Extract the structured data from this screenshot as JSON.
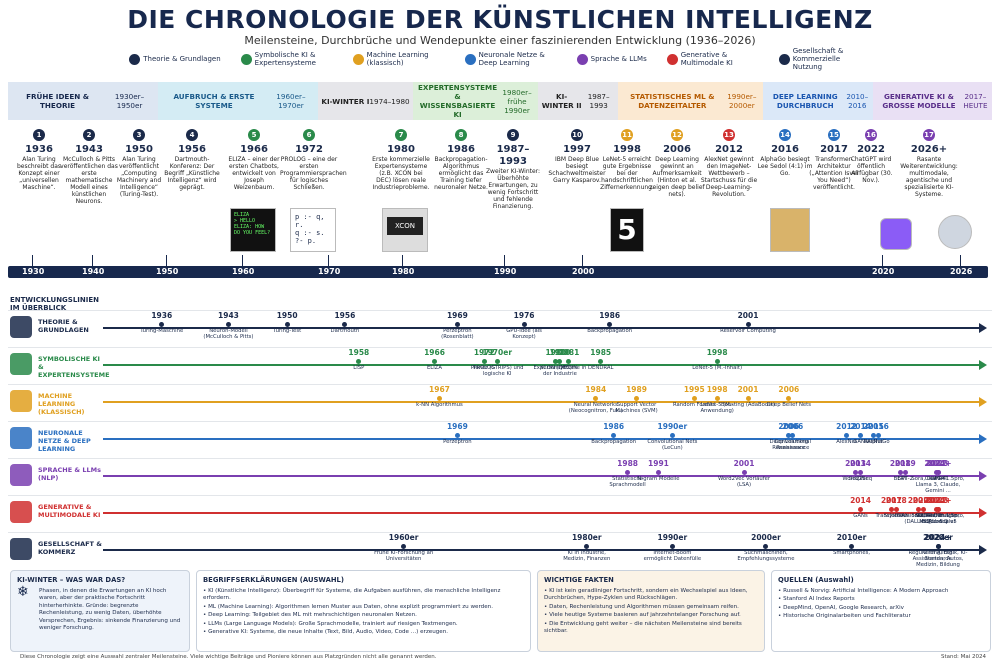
{
  "title": "DIE CHRONOLOGIE DER KÜNSTLICHEN INTELLIGENZ",
  "subtitle": "Meilensteine, Durchbrüche und Wendepunkte einer faszinierenden Entwicklung (1936–2026)",
  "legend": [
    {
      "label": "Theorie & Grundlagen",
      "color": "#1b2a4a"
    },
    {
      "label": "Symbolische KI & Expertensysteme",
      "color": "#2a8a4a"
    },
    {
      "label": "Machine Learning (klassisch)",
      "color": "#e0a020"
    },
    {
      "label": "Neuronale Netze & Deep Learning",
      "color": "#2a6fc0"
    },
    {
      "label": "Sprache & LLMs",
      "color": "#7a3fb0"
    },
    {
      "label": "Generative & Multimodale KI",
      "color": "#d03030"
    },
    {
      "label": "Gesellschaft & Kommerzielle Nutzung",
      "color": "#1b2a4a"
    }
  ],
  "eras": [
    {
      "title": "FRÜHE IDEEN & THEORIE",
      "sub": "1930er–1950er",
      "bg": "#dde6f2",
      "color": "#17284d"
    },
    {
      "title": "AUFBRUCH & ERSTE SYSTEME",
      "sub": "1960er–1970er",
      "bg": "#d4ecf4",
      "color": "#1a5a8a"
    },
    {
      "title": "KI-WINTER I",
      "sub": "1974–1980",
      "bg": "#e6e6ea",
      "color": "#222"
    },
    {
      "title": "EXPERTENSYSTEME & WISSENSBASIERTE KI",
      "sub": "1980er–frühe 1990er",
      "bg": "#dcefd9",
      "color": "#246b2a"
    },
    {
      "title": "KI-WINTER II",
      "sub": "1987–1993",
      "bg": "#e6e6ea",
      "color": "#222"
    },
    {
      "title": "STATISTISCHES ML & DATENZEITALTER",
      "sub": "1990er–2000er",
      "bg": "#fbe9d2",
      "color": "#b55a00"
    },
    {
      "title": "DEEP LEARNING DURCHBRUCH",
      "sub": "2010–2016",
      "bg": "#dbe8f8",
      "color": "#1b56b0"
    },
    {
      "title": "GENERATIVE KI & GROSSE MODELLE",
      "sub": "2017–HEUTE",
      "bg": "#e9e0f4",
      "color": "#5a2f8a"
    }
  ],
  "events": [
    {
      "n": "1",
      "year": "1936",
      "text": "Alan Turing beschreibt das Konzept einer „universellen Maschine“.",
      "color": "#1b2a4a"
    },
    {
      "n": "2",
      "year": "1943",
      "text": "McCulloch & Pitts veröffentlichen das erste mathematische Modell eines künstlichen Neurons.",
      "color": "#1b2a4a"
    },
    {
      "n": "3",
      "year": "1950",
      "text": "Alan Turing veröffentlicht „Computing Machinery and Intelligence“ (Turing-Test).",
      "color": "#1b2a4a"
    },
    {
      "n": "4",
      "year": "1956",
      "text": "Dartmouth-Konferenz: Der Begriff „Künstliche Intelligenz“ wird geprägt.",
      "color": "#1b2a4a"
    },
    {
      "n": "5",
      "year": "1966",
      "text": "ELIZA – einer der ersten Chatbots, entwickelt von Joseph Weizenbaum.",
      "color": "#2a8a4a"
    },
    {
      "n": "6",
      "year": "1972",
      "text": "PROLOG – eine der ersten Programmiersprachen für logisches Schließen.",
      "color": "#2a8a4a"
    },
    {
      "n": "7",
      "year": "1980",
      "text": "Erste kommerzielle Expertensysteme (z.B. XCON bei DEC) lösen reale Industrieprobleme.",
      "color": "#2a8a4a"
    },
    {
      "n": "8",
      "year": "1986",
      "text": "Backpropagation-Algorithmus ermöglicht das Training tiefer neuronaler Netze.",
      "color": "#2a8a4a"
    },
    {
      "n": "9",
      "year": "1987–1993",
      "text": "Zweiter KI-Winter: Überhöhte Erwartungen, zu wenig Fortschritt und fehlende Finanzierung.",
      "color": "#1b2a4a"
    },
    {
      "n": "10",
      "year": "1997",
      "text": "IBM Deep Blue besiegt Schachweltmeister Garry Kasparov.",
      "color": "#1b2a4a"
    },
    {
      "n": "11",
      "year": "1998",
      "text": "LeNet-5 erreicht gute Ergebnisse bei der handschriftlichen Ziffernerkennung.",
      "color": "#e0a020"
    },
    {
      "n": "12",
      "year": "2006",
      "text": "Deep Learning gewinnt an Aufmerksamkeit (Hinton et al. zeigen deep belief nets).",
      "color": "#e0a020"
    },
    {
      "n": "13",
      "year": "2012",
      "text": "AlexNet gewinnt den ImageNet-Wettbewerb – Startschuss für die Deep-Learning-Revolution.",
      "color": "#d03030"
    },
    {
      "n": "14",
      "year": "2016",
      "text": "AlphaGo besiegt Lee Sedol (4:1) im Go.",
      "color": "#2a6fc0"
    },
    {
      "n": "15",
      "year": "2017",
      "text": "Transformer-Architektur („Attention Is All You Need“) veröffentlicht.",
      "color": "#2a6fc0"
    },
    {
      "n": "16",
      "year": "2022",
      "text": "ChatGPT wird öffentlich verfügbar (30. Nov.).",
      "color": "#7a3fb0"
    },
    {
      "n": "17",
      "year": "2026+",
      "text": "Rasante Weiterentwicklung: multimodale, agentische und spezialisierte KI-Systeme.",
      "color": "#7a3fb0"
    }
  ],
  "axis_labels": [
    "1930",
    "1940",
    "1950",
    "1960",
    "1970",
    "1980",
    "1990",
    "2000",
    "2020",
    "2026"
  ],
  "pics": {
    "xcon": "XCON",
    "lenet": "5"
  },
  "overview_title": "ENTWICKLUNGSLINIEN IM ÜBERBLICK",
  "lanes": [
    {
      "label": "THEORIE & GRUNDLAGEN",
      "color": "#1b2a4a",
      "items": [
        {
          "y": "1936",
          "t": "Turing-Maschine"
        },
        {
          "y": "1943",
          "t": "Neuron-Modell (McCulloch & Pitts)"
        },
        {
          "y": "1950",
          "t": "Turing-Test"
        },
        {
          "y": "1956",
          "t": "Dartmouth"
        },
        {
          "y": "1969",
          "t": "Perzeptron (Rosenblatt)"
        },
        {
          "y": "1976",
          "t": "GPU-Idee (als Konzept)"
        },
        {
          "y": "1986",
          "t": "Backpropagation"
        },
        {
          "y": "2001",
          "t": "Reservoir Computing"
        }
      ]
    },
    {
      "label": "SYMBOLISCHE KI & EXPERTENSYSTEME",
      "color": "#2a8a4a",
      "items": [
        {
          "y": "1958",
          "t": "LISP"
        },
        {
          "y": "1966",
          "t": "ELIZA"
        },
        {
          "y": "1972",
          "t": "PROLOG"
        },
        {
          "y": "1970er",
          "t": "Planer (STRIPS) und logische KI"
        },
        {
          "y": "1980",
          "t": "XCON (DEC)"
        },
        {
          "y": "1981",
          "t": "MYCIN"
        },
        {
          "y": "1985",
          "t": "DENDRAL"
        },
        {
          "y": "1980",
          "t": "Expertensysteme in der Industrie"
        },
        {
          "y": "1998",
          "t": "LeNet-5 (M.-Inhalt)"
        }
      ]
    },
    {
      "label": "MACHINE LEARNING (KLASSISCH)",
      "color": "#e0a020",
      "items": [
        {
          "y": "1967",
          "t": "k-NN Algorithmus"
        },
        {
          "y": "1984",
          "t": "Neural Networks (Neocognitron, Fuk.)"
        },
        {
          "y": "1989",
          "t": "Support Vector Machines (SVM)"
        },
        {
          "y": "1995",
          "t": "Random Forests"
        },
        {
          "y": "1998",
          "t": "LeNet-5 (M.-Anwendung)"
        },
        {
          "y": "2001",
          "t": "Boosting (AdaBoost)"
        },
        {
          "y": "2006",
          "t": "Deep Belief Nets"
        }
      ]
    },
    {
      "label": "NEURONALE NETZE & DEEP LEARNING",
      "color": "#2a6fc0",
      "items": [
        {
          "y": "1969",
          "t": "Perzeptron"
        },
        {
          "y": "1986",
          "t": "Backpropagation"
        },
        {
          "y": "1990er",
          "t": "Convolutional Nets (LeCun)"
        },
        {
          "y": "2006",
          "t": "Convolutional Renaissance"
        },
        {
          "y": "2006",
          "t": "Deep Learning Renaissance"
        },
        {
          "y": "2012",
          "t": "AlexNet"
        },
        {
          "y": "2014",
          "t": "GANs"
        },
        {
          "y": "2015",
          "t": "ResNet"
        },
        {
          "y": "2016",
          "t": "AlphaGo"
        }
      ]
    },
    {
      "label": "SPRACHE & LLMs (NLP)",
      "color": "#7a3fb0",
      "items": [
        {
          "y": "1988",
          "t": "Statistische Sprachmodell"
        },
        {
          "y": "1991",
          "t": "N-gram Modelle"
        },
        {
          "y": "2001",
          "t": "Word2Vec Vorläufer (LSA)"
        },
        {
          "y": "2013",
          "t": "Word2Vec"
        },
        {
          "y": "2014",
          "t": "Seq2Seq"
        },
        {
          "y": "2018",
          "t": "BERT"
        },
        {
          "y": "2019",
          "t": "GPT-2"
        },
        {
          "y": "2022",
          "t": "ChatGPT"
        },
        {
          "y": "2023",
          "t": "GPT-4"
        },
        {
          "y": "2024+",
          "t": "Sora, Gemin 1.5pro, Llama 3, Claude, Gemini ..."
        }
      ]
    },
    {
      "label": "GENERATIVE & MULTIMODALE KI",
      "color": "#d03030",
      "items": [
        {
          "y": "2014",
          "t": "GANs"
        },
        {
          "y": "2017",
          "t": "Transformer"
        },
        {
          "y": "2018",
          "t": "StyleGAN"
        },
        {
          "y": "2020",
          "t": "Diffusionsmodelle (DALL·E 2)"
        },
        {
          "y": "2021",
          "t": "CLIP"
        },
        {
          "y": "2022",
          "t": "Stable Diffusion DALL·E 2"
        },
        {
          "y": "2023",
          "t": "GPT-4V, Imagen, Midjourney v5"
        },
        {
          "y": "2024+",
          "t": "Sora, Gemin 1.5pro, multimodaler"
        }
      ]
    },
    {
      "label": "GESELLSCHAFT & KOMMERZ",
      "color": "#1b2a4a",
      "items": [
        {
          "y": "1960er",
          "t": "Frühe KI-Forschung an Universitäten"
        },
        {
          "y": "1980er",
          "t": "KI in Industrie, Medizin, Finanzen"
        },
        {
          "y": "1990er",
          "t": "Internet-Boom ermöglicht Datenfülle"
        },
        {
          "y": "2000er",
          "t": "Suchmaschinen, Empfehlungssysteme"
        },
        {
          "y": "2010er",
          "t": "Smartphones,"
        },
        {
          "y": "2020er",
          "t": "KI im Alltag: Assistenten, Autos, Medizin, Bildung"
        },
        {
          "y": "2024+",
          "t": "Regulierung, Ethik, KI-Standards"
        }
      ]
    }
  ],
  "box_winter": {
    "title": "KI-WINTER – WAS WAR DAS?",
    "text": "Phasen, in denen die Erwartungen an KI hoch waren, aber der praktische Fortschritt hinterherhinkte. Gründe: begrenzte Rechenleistung, zu wenig Daten, überhöhte Versprechen, Ergebnis: sinkende Finanzierung und weniger Forschung."
  },
  "box_terms": {
    "title": "BEGRIFFSERKLÄRUNGEN (AUSWAHL)",
    "items": [
      "KI (Künstliche Intelligenz): Überbegriff für Systeme, die Aufgaben ausführen, die menschliche Intelligenz erfordern.",
      "ML (Machine Learning): Algorithmen lernen Muster aus Daten, ohne explizit programmiert zu werden.",
      "Deep Learning: Teilgebiet des ML mit mehrschichtigen neuronalen Netzen.",
      "LLMs (Large Language Models): Große Sprachmodelle, trainiert auf riesigen Textmengen.",
      "Generative KI: Systeme, die neue Inhalte (Text, Bild, Audio, Video, Code ...) erzeugen."
    ]
  },
  "box_facts": {
    "title": "WICHTIGE FAKTEN",
    "items": [
      "KI ist kein geradliniger Fortschritt, sondern ein Wechselspiel aus Ideen, Durchbrüchen, Hype-Zyklen und Rückschlägen.",
      "Daten, Rechenleistung und Algorithmen müssen gemeinsam reifen.",
      "Viele heutige Systeme basieren auf jahrzehntelanger Forschung auf.",
      "Die Entwicklung geht weiter – die nächsten Meilensteine sind bereits sichtbar."
    ]
  },
  "box_sources": {
    "title": "QUELLEN (Auswahl)",
    "items": [
      "Russell & Norvig: Artificial Intelligence: A Modern Approach",
      "Stanford AI Index Reports",
      "DeepMind, OpenAI, Google Research, arXiv",
      "Historische Originalarbeiten und Fachliteratur"
    ]
  },
  "footnote": "Diese Chronologie zeigt eine Auswahl zentraler Meilensteine. Viele wichtige Beiträge und Pioniere können aus Platzgründen nicht alle genannt werden.",
  "stand": "Stand: Mai 2024"
}
